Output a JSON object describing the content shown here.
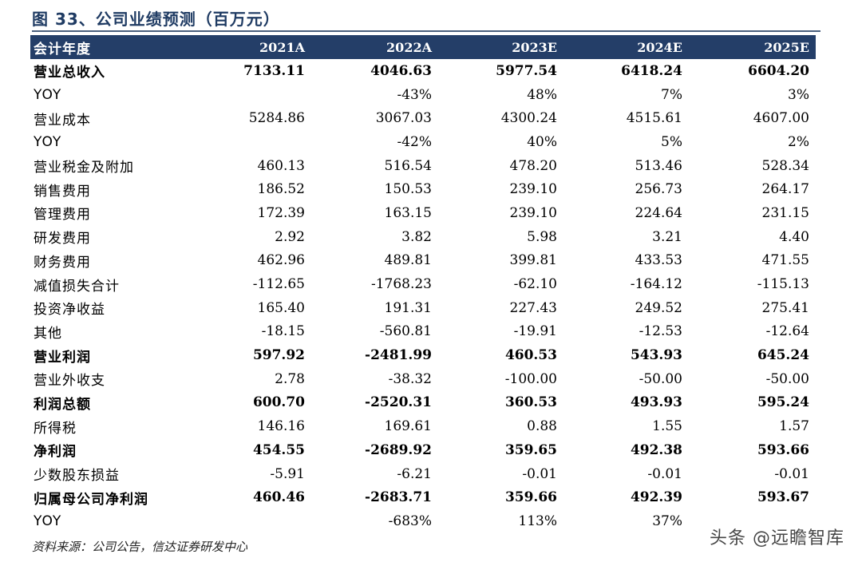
{
  "title": "图 33、公司业绩预测（百万元）",
  "header": [
    "会计年度",
    "2021A",
    "2022A",
    "2023E",
    "2024E",
    "2025E"
  ],
  "rows": [
    {
      "label": "营业总收入",
      "values": [
        "7133.11",
        "4046.63",
        "5977.54",
        "6418.24",
        "6604.20"
      ],
      "bold": true
    },
    {
      "label": "YOY",
      "values": [
        "",
        "-43%",
        "48%",
        "7%",
        "3%"
      ],
      "bold": false
    },
    {
      "label": "营业成本",
      "values": [
        "5284.86",
        "3067.03",
        "4300.24",
        "4515.61",
        "4607.00"
      ],
      "bold": false
    },
    {
      "label": "YOY",
      "values": [
        "",
        "-42%",
        "40%",
        "5%",
        "2%"
      ],
      "bold": false
    },
    {
      "label": "营业税金及附加",
      "values": [
        "460.13",
        "516.54",
        "478.20",
        "513.46",
        "528.34"
      ],
      "bold": false
    },
    {
      "label": "销售费用",
      "values": [
        "186.52",
        "150.53",
        "239.10",
        "256.73",
        "264.17"
      ],
      "bold": false
    },
    {
      "label": "管理费用",
      "values": [
        "172.39",
        "163.15",
        "239.10",
        "224.64",
        "231.15"
      ],
      "bold": false
    },
    {
      "label": "研发费用",
      "values": [
        "2.92",
        "3.82",
        "5.98",
        "3.21",
        "4.40"
      ],
      "bold": false
    },
    {
      "label": "财务费用",
      "values": [
        "462.96",
        "489.81",
        "399.81",
        "433.53",
        "471.55"
      ],
      "bold": false
    },
    {
      "label": "减值损失合计",
      "values": [
        "-112.65",
        "-1768.23",
        "-62.10",
        "-164.12",
        "-115.13"
      ],
      "bold": false
    },
    {
      "label": "投资净收益",
      "values": [
        "165.40",
        "191.31",
        "227.43",
        "249.52",
        "275.41"
      ],
      "bold": false
    },
    {
      "label": "其他",
      "values": [
        "-18.15",
        "-560.81",
        "-19.91",
        "-12.53",
        "-12.64"
      ],
      "bold": false
    },
    {
      "label": "营业利润",
      "values": [
        "597.92",
        "-2481.99",
        "460.53",
        "543.93",
        "645.24"
      ],
      "bold": true
    },
    {
      "label": "营业外收支",
      "values": [
        "2.78",
        "-38.32",
        "-100.00",
        "-50.00",
        "-50.00"
      ],
      "bold": false
    },
    {
      "label": "利润总额",
      "values": [
        "600.70",
        "-2520.31",
        "360.53",
        "493.93",
        "595.24"
      ],
      "bold": true
    },
    {
      "label": "所得税",
      "values": [
        "146.16",
        "169.61",
        "0.88",
        "1.55",
        "1.57"
      ],
      "bold": false
    },
    {
      "label": "净利润",
      "values": [
        "454.55",
        "-2689.92",
        "359.65",
        "492.38",
        "593.66"
      ],
      "bold": true
    },
    {
      "label": "少数股东损益",
      "values": [
        "-5.91",
        "-6.21",
        "-0.01",
        "-0.01",
        "-0.01"
      ],
      "bold": false
    },
    {
      "label": "归属母公司净利润",
      "values": [
        "460.46",
        "-2683.71",
        "359.66",
        "492.39",
        "593.67"
      ],
      "bold": true
    },
    {
      "label": "YOY",
      "values": [
        "",
        "-683%",
        "113%",
        "37%",
        ""
      ],
      "bold": false
    }
  ],
  "source": "资料来源：公司公告，信达证券研发中心",
  "watermark": "头条 @远瞻智库"
}
